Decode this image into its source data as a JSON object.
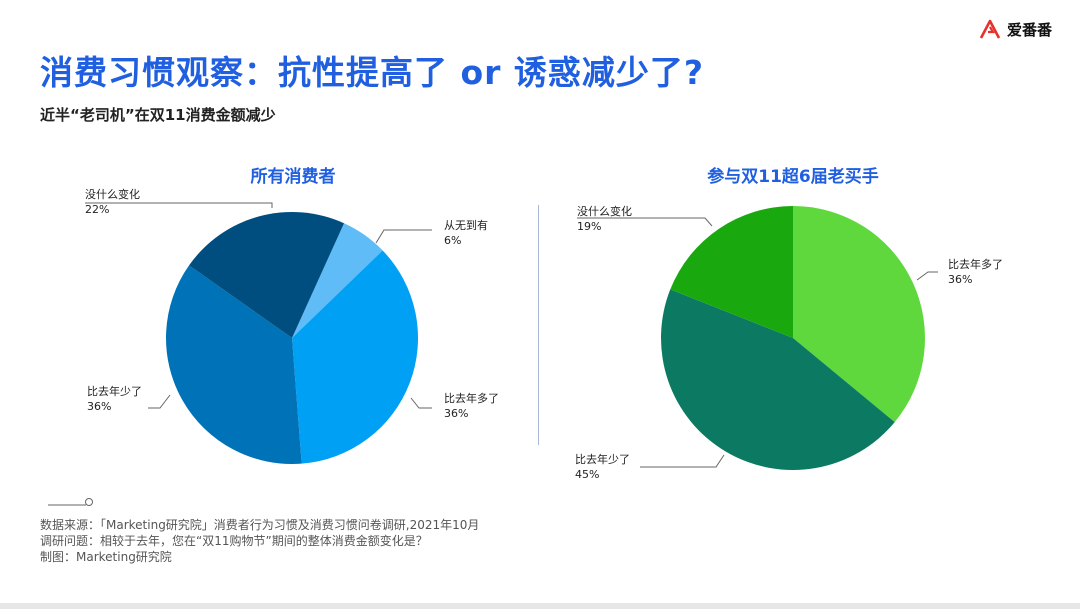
{
  "header": {
    "title": "消费习惯观察：抗性提高了 or 诱惑减少了?",
    "subtitle": "近半“老司机”在双11消费金额减少",
    "logo_text": "爱番番",
    "logo_color": "#e5322d"
  },
  "chart_data": [
    {
      "type": "pie",
      "title": "所有消费者",
      "slices": [
        {
          "label": "从无到有",
          "value": 6,
          "color": "#5fbcf7"
        },
        {
          "label": "比去年多了",
          "value": 36,
          "color": "#00a0f4"
        },
        {
          "label": "比去年少了",
          "value": 36,
          "color": "#0073b8"
        },
        {
          "label": "没什么变化",
          "value": 22,
          "color": "#004e80"
        }
      ]
    },
    {
      "type": "pie",
      "title": "参与双11超6届老买手",
      "slices": [
        {
          "label": "比去年多了",
          "value": 36,
          "color": "#5ed83d"
        },
        {
          "label": "比去年少了",
          "value": 45,
          "color": "#0c7a62"
        },
        {
          "label": "没什么变化",
          "value": 19,
          "color": "#1aa80f"
        }
      ]
    }
  ],
  "footer": {
    "source_line": "数据来源：「Marketing研究院」消费者行为习惯及消费习惯问卷调研,2021年10月",
    "question_line": "调研问题：相较于去年，您在“双11购物节”期间的整体消费金额变化是？",
    "credit_line": "制图：Marketing研究院"
  }
}
